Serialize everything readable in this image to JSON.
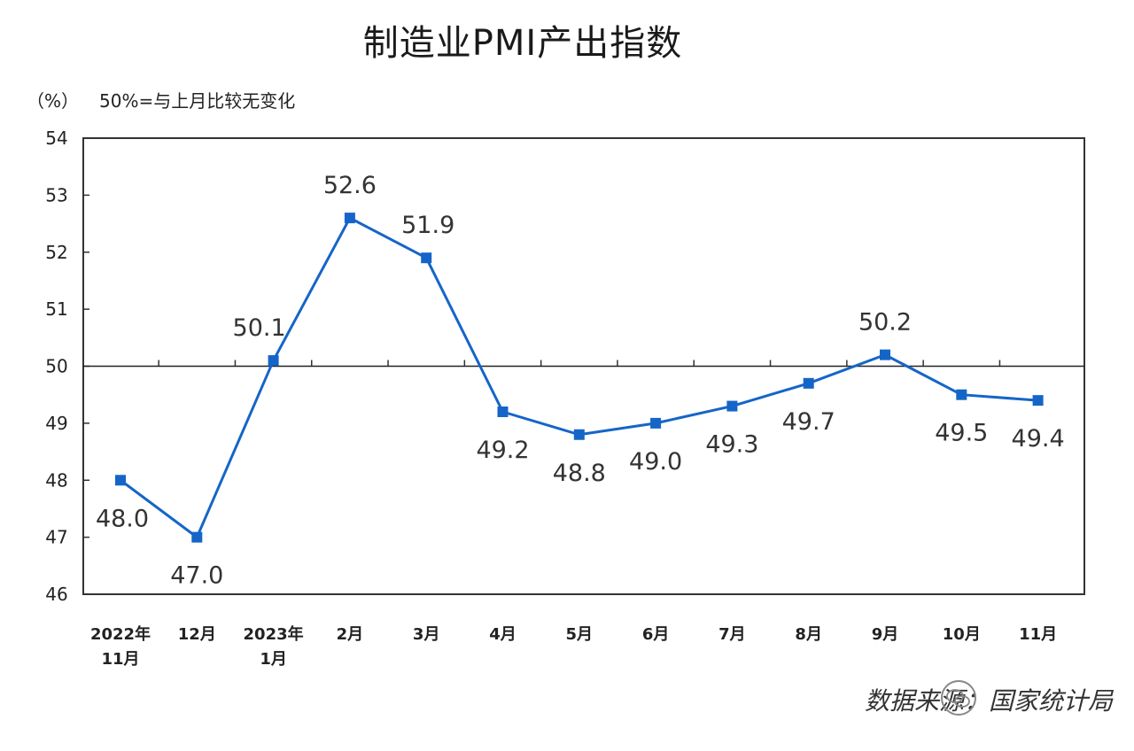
{
  "title": "制造业PMI产出指数",
  "unit_label": "（%）",
  "note": "50%=与上月比较无变化",
  "source": "数据来源：国家统计局",
  "colors": {
    "line": "#1565c8",
    "axis": "#333333",
    "reference": "#222222"
  },
  "icons": {
    "watermark": "wechat-icon"
  },
  "chart_data": {
    "type": "line",
    "title": "制造业PMI产出指数",
    "ylabel": "（%）",
    "ylim": [
      46,
      54
    ],
    "yticks": [
      "46",
      "47",
      "48",
      "49",
      "50",
      "51",
      "52",
      "53",
      "54"
    ],
    "reference_line": 50,
    "grid": false,
    "categories": [
      [
        "2022年",
        "11月"
      ],
      [
        "12月"
      ],
      [
        "2023年",
        "1月"
      ],
      [
        "2月"
      ],
      [
        "3月"
      ],
      [
        "4月"
      ],
      [
        "5月"
      ],
      [
        "6月"
      ],
      [
        "7月"
      ],
      [
        "8月"
      ],
      [
        "9月"
      ],
      [
        "10月"
      ],
      [
        "11月"
      ]
    ],
    "values": [
      48.0,
      47.0,
      50.1,
      52.6,
      51.9,
      49.2,
      48.8,
      49.0,
      49.3,
      49.7,
      50.2,
      49.5,
      49.4
    ],
    "value_labels": [
      "48.0",
      "47.0",
      "50.1",
      "52.6",
      "51.9",
      "49.2",
      "48.8",
      "49.0",
      "49.3",
      "49.7",
      "50.2",
      "49.5",
      "49.4"
    ],
    "label_positions": [
      "below",
      "below",
      "above",
      "above",
      "above",
      "below",
      "below",
      "below",
      "below",
      "below",
      "above",
      "below",
      "below"
    ]
  }
}
